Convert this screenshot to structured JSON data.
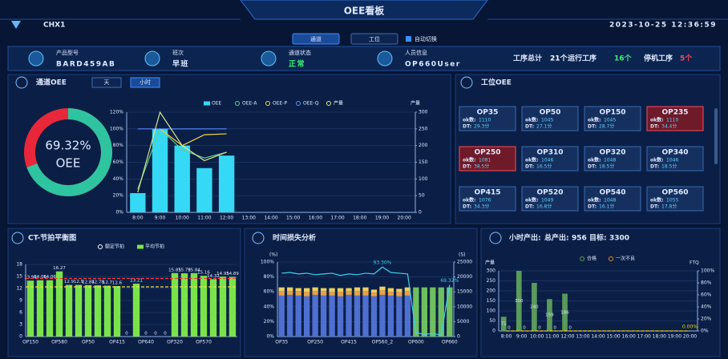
{
  "header": {
    "site": "CHX1",
    "title": "OEE看板",
    "datetime": "2023-10-25 12:36:59",
    "tabs": [
      "通道",
      "工位"
    ],
    "auto_switch": "自动切换"
  },
  "info": {
    "fields": [
      {
        "label": "产品型号",
        "value": "BARD459AB"
      },
      {
        "label": "班次",
        "value": "早班"
      },
      {
        "label": "通道状态",
        "value": "正常"
      },
      {
        "label": "人员信息",
        "value": "OP660User"
      }
    ],
    "stats": [
      {
        "label": "工序总计",
        "value": "21个"
      },
      {
        "label": "运行工序",
        "value": "16个"
      },
      {
        "label": "停机工序",
        "value": "5个"
      }
    ]
  },
  "channel_oee": {
    "title": "通道OEE",
    "tabs": [
      "天",
      "小时"
    ],
    "gauge": {
      "value": 69.32,
      "value_label": "69.32%",
      "label": "OEE"
    },
    "chart": {
      "type": "bar-line",
      "categories": [
        "8:00",
        "9:00",
        "10:00",
        "11:00",
        "12:00",
        "13:00",
        "14:00",
        "15:00",
        "16:00",
        "17:00",
        "18:00",
        "19:00",
        "20:00"
      ],
      "y2_label": "产量",
      "grid": true,
      "ylim": [
        0,
        120
      ],
      "yticks": [
        {
          "value": 0,
          "label": "0%"
        },
        {
          "value": 20,
          "label": "20%"
        },
        {
          "value": 40,
          "label": "40%"
        },
        {
          "value": 60,
          "label": "60%"
        },
        {
          "value": 80,
          "label": "80%"
        },
        {
          "value": 100,
          "label": "100%"
        },
        {
          "value": 120,
          "label": "120%"
        }
      ],
      "y2lim": [
        0,
        300
      ],
      "y2ticks": [
        0,
        50,
        100,
        150,
        200,
        250,
        300
      ],
      "series": [
        {
          "name": "OEE",
          "color": "#35d9f5",
          "type": "bar",
          "values": [
            23,
            100,
            80,
            53,
            68,
            null,
            null,
            null,
            null,
            null,
            null,
            null,
            null
          ]
        },
        {
          "name": "OEE-A",
          "color": "#5fd08a",
          "type": "line",
          "values": [
            28,
            100,
            75,
            65,
            72,
            null,
            null,
            null,
            null,
            null,
            null,
            null,
            null
          ]
        },
        {
          "name": "OEE-P",
          "color": "#f0d64a",
          "type": "line",
          "values": [
            null,
            100,
            80,
            93,
            94,
            null,
            null,
            null,
            null,
            null,
            null,
            null,
            null
          ]
        },
        {
          "name": "OEE-Q",
          "color": "#5b8cff",
          "type": "line",
          "values": [
            100,
            100,
            100,
            100,
            100,
            null,
            null,
            null,
            null,
            null,
            null,
            null,
            null
          ]
        },
        {
          "name": "产量",
          "color": "#d8e890",
          "type": "line",
          "axis": "y2",
          "values": [
            60,
            300,
            200,
            155,
            180,
            null,
            null,
            null,
            null,
            null,
            null,
            null,
            null
          ]
        }
      ]
    }
  },
  "station_oee": {
    "title": "工位OEE",
    "ok_label": "ok数:",
    "dt_label": "DT:",
    "cards": [
      {
        "name": "OP35",
        "ok": 1110,
        "dt": "29.3分",
        "alarm": false
      },
      {
        "name": "OP50",
        "ok": 1045,
        "dt": "27.1分",
        "alarm": false
      },
      {
        "name": "OP150",
        "ok": 1045,
        "dt": "28.7分",
        "alarm": false
      },
      {
        "name": "OP235",
        "ok": 1110,
        "dt": "34.4分",
        "alarm": true
      },
      {
        "name": "OP250",
        "ok": 1081,
        "dt": "38.5分",
        "alarm": true
      },
      {
        "name": "OP310",
        "ok": 1046,
        "dt": "16.5分",
        "alarm": false
      },
      {
        "name": "OP320",
        "ok": 1048,
        "dt": "18.5分",
        "alarm": false
      },
      {
        "name": "OP340",
        "ok": 1046,
        "dt": "18.5分",
        "alarm": false
      },
      {
        "name": "OP415",
        "ok": 1076,
        "dt": "34.3分",
        "alarm": false
      },
      {
        "name": "OP520",
        "ok": 1049,
        "dt": "16.8分",
        "alarm": false
      },
      {
        "name": "OP540",
        "ok": 1048,
        "dt": "16.1分",
        "alarm": false
      },
      {
        "name": "OP560",
        "ok": 1055,
        "dt": "17.8分",
        "alarm": false
      }
    ]
  },
  "ct_balance": {
    "title": "CT-节拍平衡图",
    "chart": {
      "type": "bar",
      "grid": true,
      "categories": [
        "OP150",
        null,
        null,
        "OP580",
        null,
        null,
        "OP50",
        null,
        null,
        "OP415",
        null,
        null,
        "OP640",
        null,
        null,
        "OP320",
        null,
        null,
        "OP570",
        null,
        null,
        null
      ],
      "ylim": [
        0,
        18
      ],
      "yticks": [
        0,
        3,
        6,
        9,
        12,
        15,
        18
      ],
      "series": [
        {
          "name": "平均节拍",
          "color": "#7be34a",
          "type": "bar",
          "show_values": true,
          "values": [
            13.96,
            14.06,
            14.06,
            16.27,
            12.9,
            12.9,
            12.84,
            12.78,
            12.7,
            12.6,
            0,
            13.21,
            0,
            0,
            0,
            15.85,
            15.79,
            15.84,
            15.16,
            14.32,
            14.95,
            14.89
          ]
        }
      ],
      "ref_lines": [
        {
          "name": "额定节拍",
          "color": "#ff3b3b",
          "value": 14.5
        },
        {
          "color": "#f0e040",
          "value": 12.4
        }
      ]
    }
  },
  "time_loss": {
    "title": "时间损失分析",
    "chart": {
      "type": "stacked-bar-line",
      "stacked": true,
      "grid": true,
      "y_label": "(%)",
      "y2_label": "(S)",
      "categories": [
        "OP35",
        null,
        null,
        null,
        "OP250",
        null,
        null,
        null,
        "OP415",
        null,
        null,
        null,
        "OP560_2",
        null,
        null,
        null,
        "OP600",
        null,
        null,
        null,
        "OP660"
      ],
      "ylim": [
        0,
        100
      ],
      "yticks": [
        {
          "value": 0,
          "label": "0%"
        },
        {
          "value": 20,
          "label": "20%"
        },
        {
          "value": 40,
          "label": "40%"
        },
        {
          "value": 60,
          "label": "60%"
        },
        {
          "value": 80,
          "label": "80%"
        },
        {
          "value": 100,
          "label": "100%"
        }
      ],
      "y2lim": [
        0,
        25000
      ],
      "y2ticks": [
        0,
        5000,
        10000,
        15000,
        20000,
        25000
      ],
      "series": [
        {
          "color": "#4f6fd0",
          "type": "bar",
          "values": [
            55,
            56,
            55,
            54,
            56,
            55,
            55,
            54,
            56,
            55,
            55,
            54,
            56,
            55,
            54,
            55,
            null,
            null,
            null,
            null,
            null
          ]
        },
        {
          "color": "#e8a04a",
          "type": "bar",
          "values": [
            6,
            5,
            6,
            6,
            5,
            6,
            5,
            6,
            5,
            6,
            6,
            5,
            6,
            5,
            6,
            6,
            null,
            null,
            null,
            null,
            null
          ]
        },
        {
          "color": "#e8d060",
          "type": "bar",
          "values": [
            5,
            5,
            4,
            5,
            5,
            4,
            5,
            5,
            4,
            5,
            5,
            4,
            5,
            5,
            4,
            5,
            null,
            null,
            null,
            null,
            null
          ]
        },
        {
          "color": "#6fbf60",
          "type": "bar",
          "values": [
            null,
            null,
            null,
            null,
            null,
            null,
            null,
            null,
            null,
            null,
            null,
            null,
            null,
            null,
            null,
            null,
            66,
            66,
            66,
            66,
            66
          ]
        },
        {
          "color": "#3fd0f0",
          "type": "line",
          "values": [
            85,
            86,
            84,
            85,
            83,
            84,
            85,
            82,
            84,
            83,
            85,
            84,
            93.3,
            86,
            85,
            84,
            5,
            3,
            4,
            2,
            69.32
          ],
          "value_labels": [
            null,
            null,
            null,
            null,
            null,
            null,
            null,
            null,
            null,
            null,
            null,
            null,
            "93.30%",
            null,
            null,
            null,
            null,
            null,
            null,
            null,
            "69.32%"
          ]
        }
      ]
    }
  },
  "hourly_output": {
    "title": "小时产出:",
    "total_label": "总产出:",
    "total": 956,
    "target_label": "目标:",
    "target": 3300,
    "chart": {
      "type": "bar-line",
      "grid": true,
      "y_label": "产量",
      "y2_label": "FTQ",
      "categories": [
        "8:00",
        "9:00",
        "10:00",
        "11:00",
        "12:00",
        "13:00",
        "14:00",
        "15:00",
        "16:00",
        "17:00",
        "18:00",
        "19:00",
        "20:00"
      ],
      "ylim": [
        0,
        300
      ],
      "yticks": [
        0,
        50,
        100,
        150,
        200,
        250,
        300
      ],
      "y2lim": [
        0,
        100
      ],
      "y2ticks": [
        {
          "value": 0,
          "label": "0%"
        },
        {
          "value": 20,
          "label": "20%"
        },
        {
          "value": 40,
          "label": "40%"
        },
        {
          "value": 60,
          "label": "60%"
        },
        {
          "value": 80,
          "label": "80%"
        },
        {
          "value": 100,
          "label": "100%"
        }
      ],
      "series": [
        {
          "name": "合格",
          "color": "#5a9a5a",
          "type": "bar",
          "show_values": true,
          "label_inside": true,
          "values": [
            71,
            300,
            240,
            159,
            186,
            null,
            null,
            null,
            null,
            null,
            null,
            null,
            null
          ]
        },
        {
          "name": "一次不良",
          "color": "#e08a30",
          "type": "bar",
          "show_values": true,
          "values": [
            0,
            0,
            0,
            0,
            0,
            null,
            null,
            null,
            null,
            null,
            null,
            null,
            null
          ]
        },
        {
          "color": "#f0d000",
          "type": "line",
          "axis": "y2",
          "dashed": true,
          "values": [
            0,
            0,
            0,
            0,
            0,
            0,
            0,
            0,
            0,
            0,
            0,
            0,
            0
          ],
          "value_labels": [
            null,
            null,
            null,
            null,
            null,
            null,
            null,
            null,
            null,
            null,
            null,
            null,
            "0.00%"
          ]
        }
      ]
    }
  }
}
